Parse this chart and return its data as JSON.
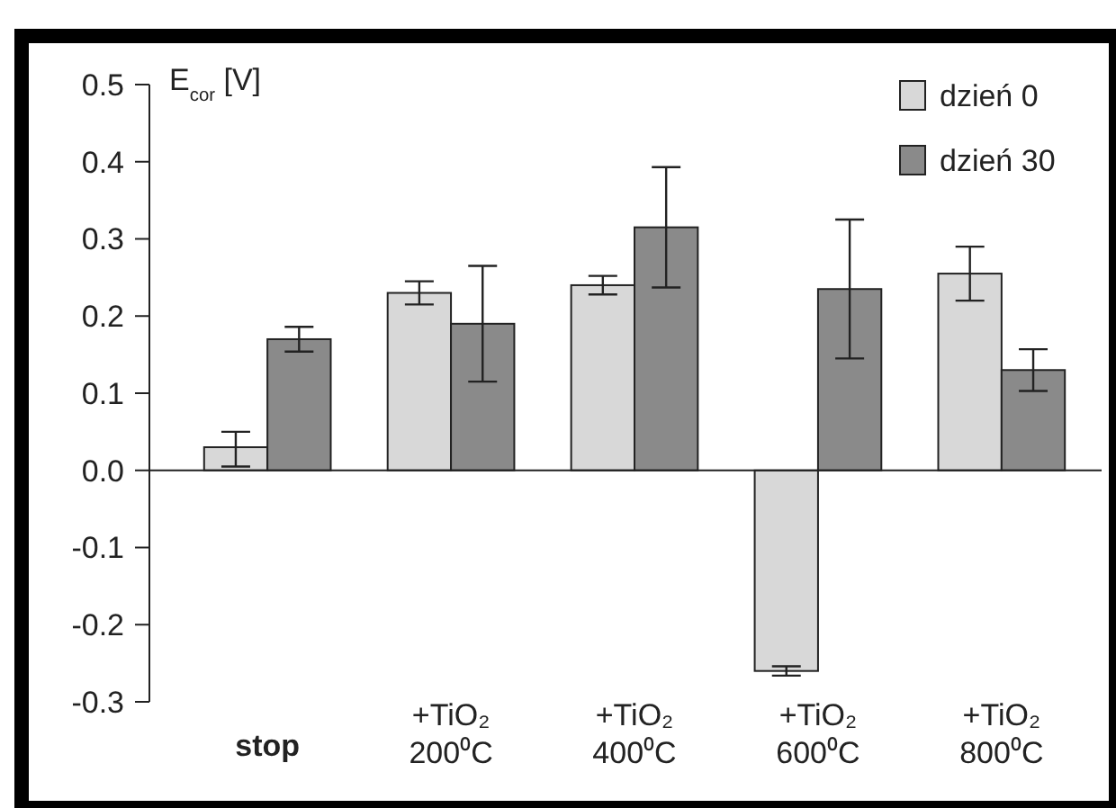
{
  "chart_data": {
    "type": "bar",
    "ylabel": "E$_{cor}$ [V]",
    "categories": [
      "stop",
      "+TiO₂\n200⁰C",
      "+TiO₂\n400⁰C",
      "+TiO₂\n600⁰C",
      "+TiO₂\n800⁰C"
    ],
    "series": [
      {
        "name": "dzień 0",
        "color": "#d8d8d8",
        "values": [
          0.03,
          0.23,
          0.24,
          -0.26,
          0.255
        ],
        "errors": [
          [
            0.005,
            0.05
          ],
          0.015,
          0.012,
          0.006,
          0.035
        ]
      },
      {
        "name": "dzień 30",
        "color": "#8a8a8a",
        "values": [
          0.17,
          0.19,
          0.315,
          0.235,
          0.13
        ],
        "errors": [
          0.016,
          0.075,
          0.078,
          0.09,
          0.027
        ]
      }
    ],
    "ylim": [
      -0.3,
      0.5
    ],
    "yticks": [
      {
        "value": -0.3,
        "label": "-0.3"
      },
      {
        "value": -0.2,
        "label": "-0.2"
      },
      {
        "value": -0.1,
        "label": "-0.1"
      },
      {
        "value": 0,
        "label": "0.0"
      },
      {
        "value": 0.1,
        "label": "0.1"
      },
      {
        "value": 0.2,
        "label": "0.2"
      },
      {
        "value": 0.3,
        "label": "0.3"
      },
      {
        "value": 0.4,
        "label": "0.4"
      },
      {
        "value": 0.5,
        "label": "0.5"
      }
    ],
    "legend": "top right"
  }
}
